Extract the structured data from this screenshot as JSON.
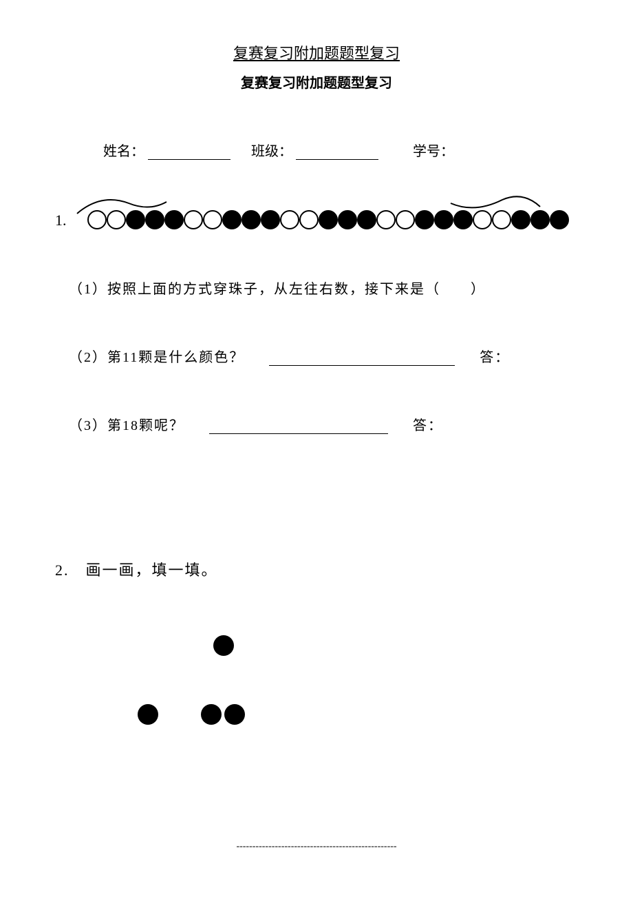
{
  "header": {
    "title": "复赛复习附加题题型复习",
    "subtitle": "复赛复习附加题题型复习"
  },
  "info": {
    "name_label": "姓名：",
    "class_label": "班级：",
    "id_label": "学号："
  },
  "q1": {
    "number": "1.",
    "beads": [
      "empty",
      "empty",
      "filled",
      "filled",
      "filled",
      "empty",
      "empty",
      "filled",
      "filled",
      "filled",
      "empty",
      "empty",
      "filled",
      "filled",
      "filled",
      "empty",
      "empty",
      "filled",
      "filled",
      "filled",
      "empty",
      "empty",
      "filled",
      "filled",
      "filled"
    ],
    "sub1": "（1）按照上面的方式穿珠子，从左往右数，接下来是（　　）",
    "sub2_prefix": "（2）第11颗是什么颜色？",
    "sub2_answer_label": "答：",
    "sub2_blank_width": 270,
    "sub3_prefix": "（3）第18颗呢？",
    "sub3_answer_label": "答：",
    "sub3_blank_width": 260
  },
  "q2": {
    "text": "2.　画一画，填一填。",
    "rows": [
      {
        "offset": 90,
        "groups": [
          [
            1
          ]
        ]
      },
      {
        "offset": -20,
        "groups": [
          [
            1
          ],
          [
            1,
            1
          ]
        ]
      }
    ]
  },
  "footer": {
    "dashes": "--------------------------------------------------"
  },
  "style": {
    "bead_size": 28,
    "dot_size": 30,
    "text_color": "#000000",
    "background": "#ffffff"
  }
}
